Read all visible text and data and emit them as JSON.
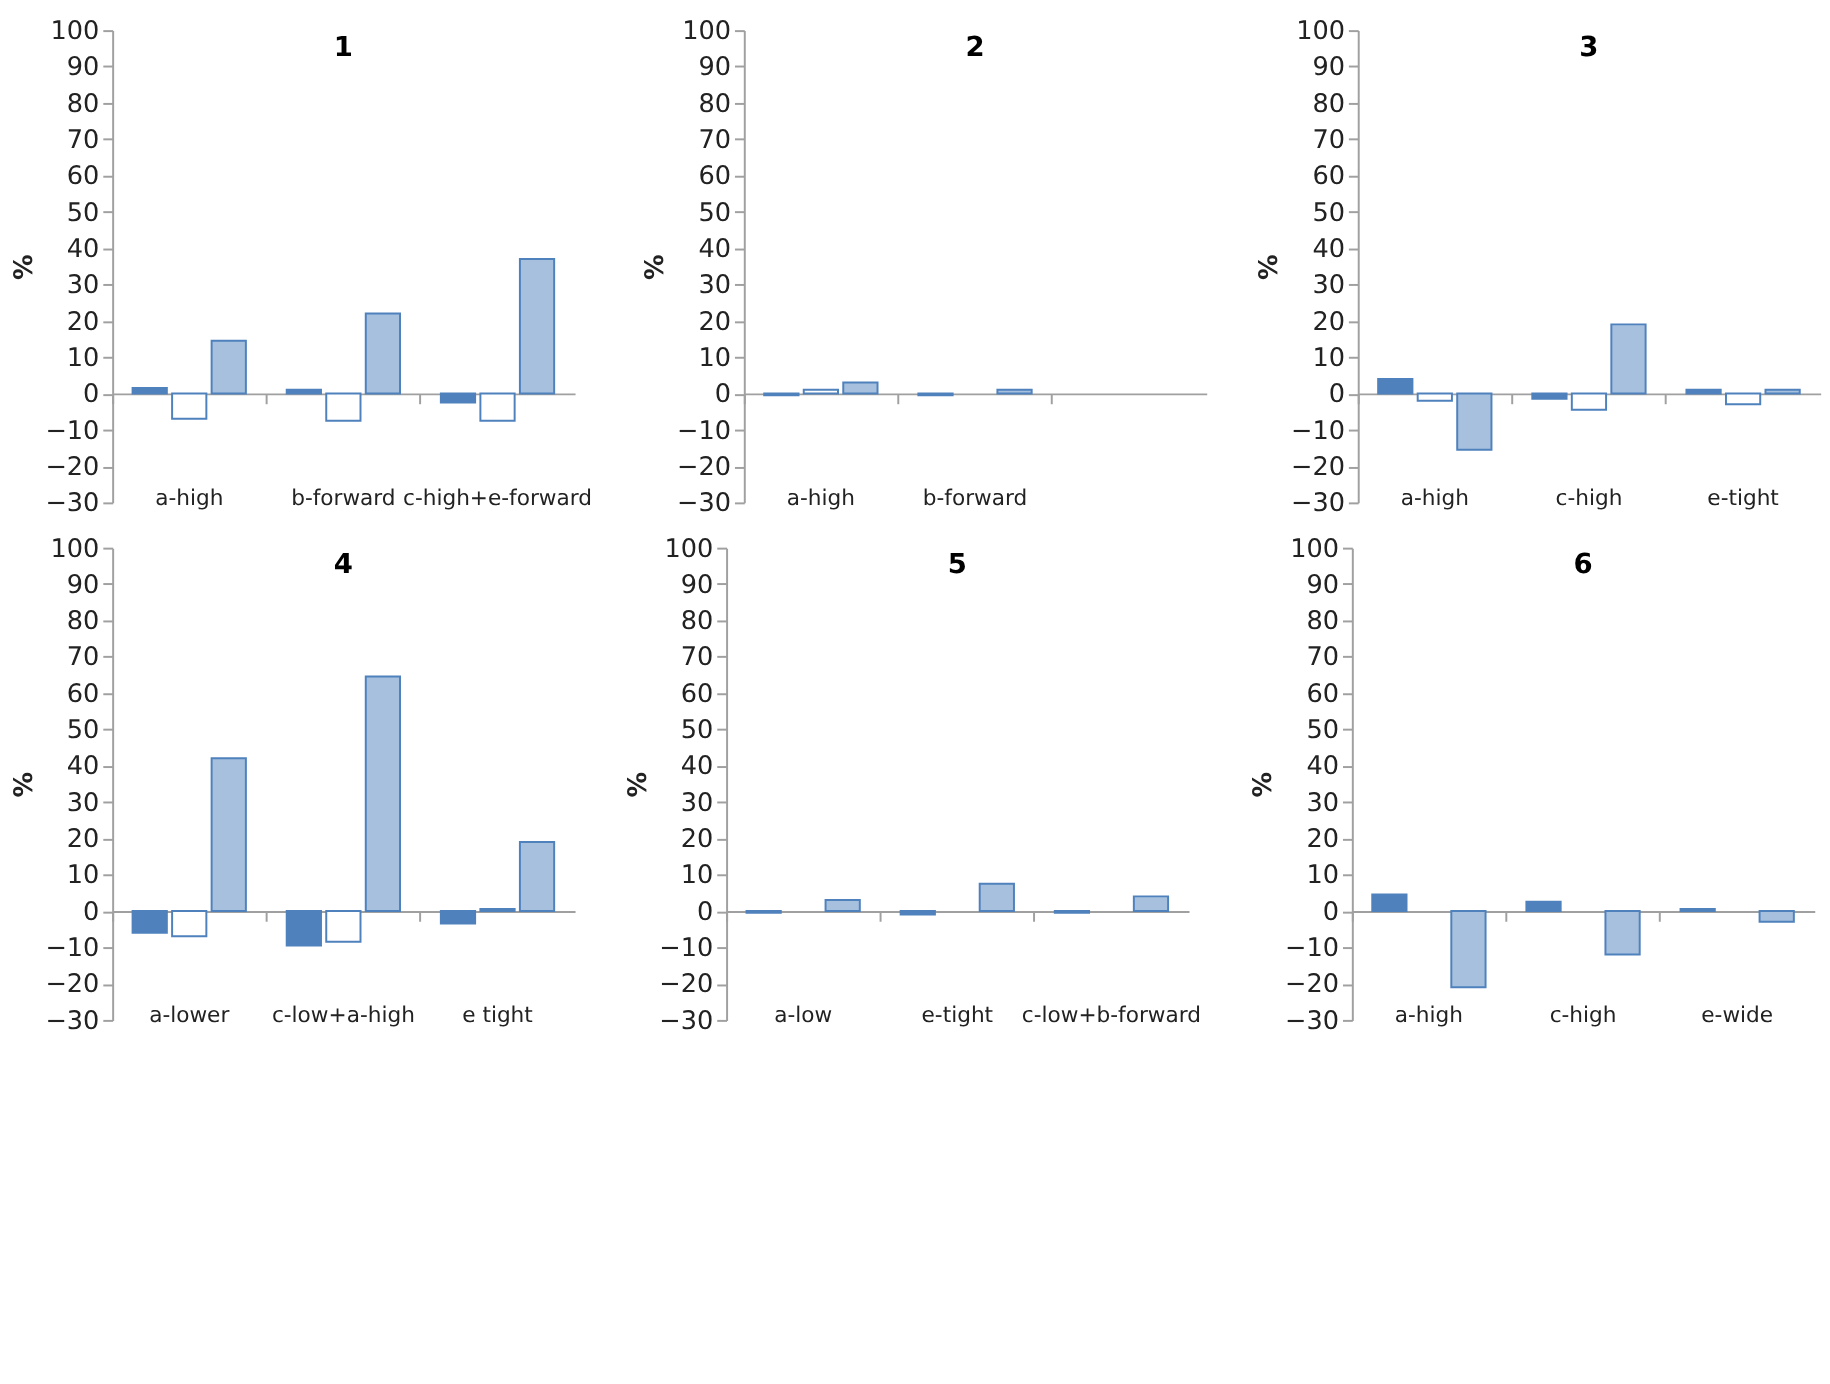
{
  "chart_data": [
    {
      "type": "bar",
      "title": "1",
      "ylabel": "%",
      "categories": [
        "a-high",
        "b-forward",
        "c-high+e-forward"
      ],
      "ylim": [
        -30,
        100
      ],
      "yticks": [
        -30,
        -20,
        -10,
        0,
        10,
        20,
        30,
        40,
        50,
        60,
        70,
        80,
        90,
        100
      ],
      "series": [
        {
          "color": "#4f81bd",
          "values": [
            1.5,
            1,
            -2.5
          ]
        },
        {
          "color": "#ffffff",
          "values": [
            -7,
            -7.5,
            -7.5
          ]
        },
        {
          "color": "#a7c0de",
          "values": [
            14.5,
            22,
            37
          ]
        }
      ]
    },
    {
      "type": "bar",
      "title": "2",
      "ylabel": "%",
      "categories": [
        "a-high",
        "b-forward",
        null
      ],
      "ylim": [
        -30,
        100
      ],
      "yticks": [
        -30,
        -20,
        -10,
        0,
        10,
        20,
        30,
        40,
        50,
        60,
        70,
        80,
        90,
        100
      ],
      "series": [
        {
          "color": "#4f81bd",
          "values": [
            -0.5,
            -0.5,
            null
          ]
        },
        {
          "color": "#ffffff",
          "values": [
            1,
            null,
            null
          ]
        },
        {
          "color": "#a7c0de",
          "values": [
            3,
            1,
            null
          ]
        }
      ]
    },
    {
      "type": "bar",
      "title": "3",
      "ylabel": "%",
      "categories": [
        "a-high",
        "c-high",
        "e-tight"
      ],
      "ylim": [
        -30,
        100
      ],
      "yticks": [
        -30,
        -20,
        -10,
        0,
        10,
        20,
        30,
        40,
        50,
        60,
        70,
        80,
        90,
        100
      ],
      "series": [
        {
          "color": "#4f81bd",
          "values": [
            4,
            -1.5,
            1
          ]
        },
        {
          "color": "#ffffff",
          "values": [
            -2,
            -4.5,
            -3
          ]
        },
        {
          "color": "#a7c0de",
          "values": [
            -15.5,
            19,
            1
          ]
        }
      ]
    },
    {
      "type": "bar",
      "title": "4",
      "ylabel": "%",
      "categories": [
        "a-lower",
        "c-low+a-high",
        "e tight"
      ],
      "ylim": [
        -30,
        100
      ],
      "yticks": [
        -30,
        -20,
        -10,
        0,
        10,
        20,
        30,
        40,
        50,
        60,
        70,
        80,
        90,
        100
      ],
      "series": [
        {
          "color": "#4f81bd",
          "values": [
            -6,
            -9.5,
            -3.5
          ]
        },
        {
          "color": "#ffffff",
          "values": [
            -7,
            -8.5,
            0.5
          ]
        },
        {
          "color": "#a7c0de",
          "values": [
            42,
            64.5,
            19
          ]
        }
      ]
    },
    {
      "type": "bar",
      "title": "5",
      "ylabel": "%",
      "categories": [
        "a-low",
        "e-tight",
        "c-low+b-forward"
      ],
      "ylim": [
        -30,
        100
      ],
      "yticks": [
        -30,
        -20,
        -10,
        0,
        10,
        20,
        30,
        40,
        50,
        60,
        70,
        80,
        90,
        100
      ],
      "series": [
        {
          "color": "#4f81bd",
          "values": [
            -0.5,
            -1,
            -0.5
          ]
        },
        {
          "color": "#ffffff",
          "values": [
            null,
            null,
            null
          ]
        },
        {
          "color": "#a7c0de",
          "values": [
            3,
            7.5,
            4
          ]
        }
      ]
    },
    {
      "type": "bar",
      "title": "6",
      "ylabel": "%",
      "categories": [
        "a-high",
        "c-high",
        "e-wide"
      ],
      "ylim": [
        -30,
        100
      ],
      "yticks": [
        -30,
        -20,
        -10,
        0,
        10,
        20,
        30,
        40,
        50,
        60,
        70,
        80,
        90,
        100
      ],
      "series": [
        {
          "color": "#4f81bd",
          "values": [
            4.5,
            2.5,
            0.5
          ]
        },
        {
          "color": "#ffffff",
          "values": [
            null,
            null,
            null
          ]
        },
        {
          "color": "#a7c0de",
          "values": [
            -21,
            -12,
            -3
          ]
        }
      ]
    }
  ]
}
